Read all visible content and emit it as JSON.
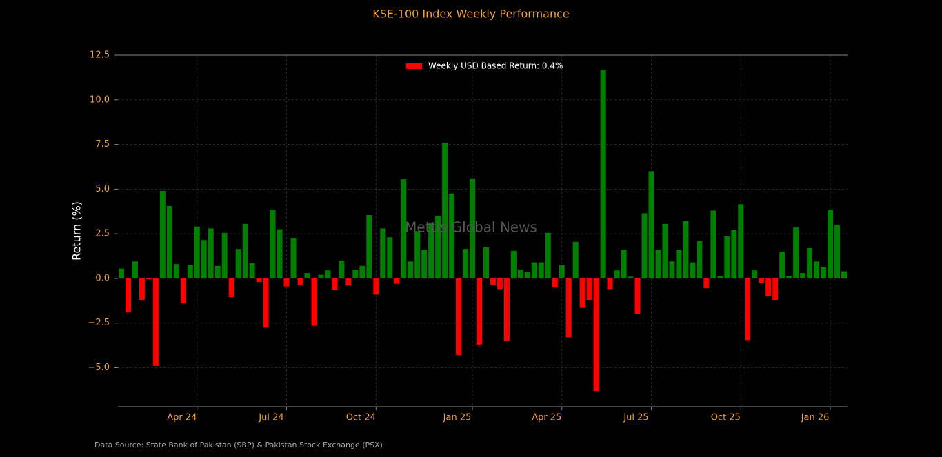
{
  "chart_data": {
    "type": "bar",
    "title": "KSE-100 Index Weekly Performance",
    "ylabel": "Return (%)",
    "legend_label": "Weekly USD Based Return: 0.4%",
    "legend_position": "upper center",
    "watermark": "Mettis Global News",
    "source": "Data Source: State Bank of Pakistan (SBP) & Pakistan Stock Exchange (PSX)",
    "positive_color": "#008000",
    "negative_color": "#ff0000",
    "grid": true,
    "categories": [
      null,
      null,
      null,
      null,
      null,
      null,
      null,
      null,
      null,
      null,
      null,
      "Apr 24",
      null,
      null,
      null,
      null,
      null,
      null,
      null,
      null,
      null,
      null,
      null,
      null,
      "Jul 24",
      null,
      null,
      null,
      null,
      null,
      null,
      null,
      null,
      null,
      null,
      null,
      null,
      "Oct 24",
      null,
      null,
      null,
      null,
      null,
      null,
      null,
      null,
      null,
      null,
      null,
      null,
      null,
      "Jan 25",
      null,
      null,
      null,
      null,
      null,
      null,
      null,
      null,
      null,
      null,
      null,
      null,
      "Apr 25",
      null,
      null,
      null,
      null,
      null,
      null,
      null,
      null,
      null,
      null,
      null,
      null,
      "Jul 25",
      null,
      null,
      null,
      null,
      null,
      null,
      null,
      null,
      null,
      null,
      null,
      null,
      "Oct 25",
      null,
      null,
      null,
      null,
      null,
      null,
      null,
      null,
      null,
      null,
      null,
      null,
      "Jan 26",
      null,
      null
    ],
    "values": [
      0.55,
      -1.9,
      0.95,
      -1.2,
      -0.05,
      -4.9,
      4.9,
      4.05,
      0.8,
      -1.4,
      0.75,
      2.9,
      2.15,
      2.8,
      0.7,
      2.55,
      -1.05,
      1.65,
      3.05,
      0.85,
      -0.2,
      -2.75,
      3.85,
      2.75,
      -0.45,
      2.25,
      -0.35,
      0.3,
      -2.65,
      0.2,
      0.45,
      -0.65,
      1.0,
      -0.4,
      0.5,
      0.7,
      3.55,
      -0.9,
      2.8,
      2.3,
      -0.3,
      5.55,
      0.95,
      2.65,
      1.6,
      3.1,
      3.5,
      7.6,
      4.75,
      -4.3,
      1.65,
      5.6,
      -3.7,
      1.75,
      -0.35,
      -0.6,
      -3.5,
      1.55,
      0.5,
      0.35,
      0.9,
      0.9,
      2.55,
      -0.5,
      0.75,
      -3.3,
      2.05,
      -1.65,
      -1.2,
      -6.3,
      11.65,
      -0.6,
      0.45,
      1.6,
      0.1,
      -2.0,
      3.65,
      6.0,
      1.6,
      3.05,
      0.95,
      1.6,
      3.2,
      0.9,
      2.1,
      -0.55,
      3.8,
      0.15,
      2.35,
      2.7,
      4.15,
      -3.45,
      0.45,
      -0.25,
      -1.0,
      -1.2,
      1.5,
      0.15,
      2.85,
      0.3,
      1.7,
      0.95,
      0.65,
      3.85,
      3.0,
      0.4
    ],
    "ylim": [
      -7.18,
      12.5
    ],
    "yticks": [
      {
        "value": -5,
        "label": "−5.0"
      },
      {
        "value": -2.5,
        "label": "−2.5"
      },
      {
        "value": 0,
        "label": "0.0"
      },
      2.5,
      {
        "value": 5,
        "label": "5.0"
      },
      7.5,
      {
        "value": 10,
        "label": "10.0"
      },
      12.5
    ]
  }
}
